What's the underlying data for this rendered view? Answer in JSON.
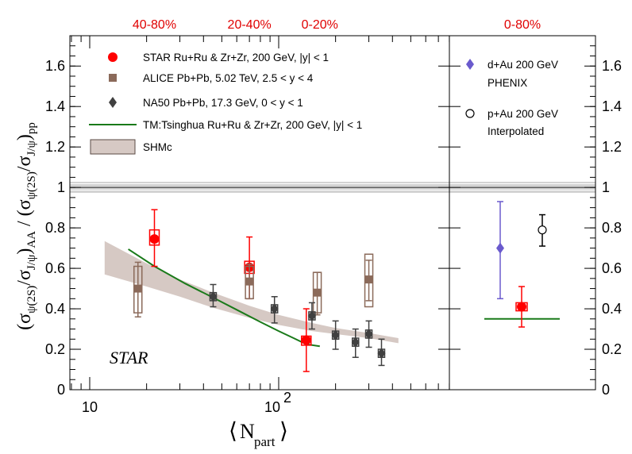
{
  "chart_data": {
    "type": "scatter",
    "x_scale": "log",
    "xlabel_main": "N",
    "xlabel_sub": "part",
    "ylabel": "(σψ(2S)/σJ/ψ)AA / (σψ(2S)/σJ/ψ)pp",
    "y_range": [
      0,
      1.75
    ],
    "x_range": [
      8,
      700
    ],
    "yticks": [
      "0",
      "0.2",
      "0.4",
      "0.6",
      "0.8",
      "1",
      "1.2",
      "1.4",
      "1.6"
    ],
    "ytick_values": [
      0,
      0.2,
      0.4,
      0.6,
      0.8,
      1.0,
      1.2,
      1.4,
      1.6
    ],
    "xticks": [
      "10",
      "10^2"
    ],
    "xtick_values": [
      10,
      100
    ],
    "centrality_labels": [
      {
        "text": "40-80%",
        "x": 22
      },
      {
        "text": "20-40%",
        "x": 70
      },
      {
        "text": "0-20%",
        "x": 165
      }
    ],
    "right_panel_centrality": "0-80%",
    "annotation": "STAR",
    "legend": {
      "star": "STAR Ru+Ru & Zr+Zr, 200 GeV, |y| < 1",
      "alice": "ALICE Pb+Pb, 5.02 TeV, 2.5 < y < 4",
      "na50": "NA50 Pb+Pb, 17.3 GeV, 0 < y < 1",
      "tm": "TM:Tsinghua Ru+Ru & Zr+Zr, 200 GeV, |y| < 1",
      "shmc": "SHMc",
      "dau_line1": "d+Au 200 GeV",
      "dau_line2": "PHENIX",
      "pau_line1": "p+Au 200 GeV",
      "pau_line2": "Interpolated"
    },
    "series": [
      {
        "id": "star",
        "name": "STAR Ru+Ru & Zr+Zr, 200 GeV, |y| < 1",
        "color": "#ff0000",
        "marker": "circle",
        "points": [
          {
            "x": 22,
            "y": 0.745,
            "stat_lo": 0.61,
            "stat_hi": 0.89,
            "sys_lo": 0.715,
            "sys_hi": 0.79
          },
          {
            "x": 70,
            "y": 0.605,
            "stat_lo": 0.45,
            "stat_hi": 0.755,
            "sys_lo": 0.575,
            "sys_hi": 0.635
          },
          {
            "x": 140,
            "y": 0.245,
            "stat_lo": 0.09,
            "stat_hi": 0.4,
            "sys_lo": 0.22,
            "sys_hi": 0.265
          }
        ]
      },
      {
        "id": "alice",
        "name": "ALICE Pb+Pb, 5.02 TeV, 2.5 < y < 4",
        "color": "#8b6a5a",
        "marker": "square",
        "points": [
          {
            "x": 18,
            "y": 0.5,
            "stat_lo": 0.36,
            "stat_hi": 0.63,
            "sys_lo": 0.38,
            "sys_hi": 0.61
          },
          {
            "x": 70,
            "y": 0.535,
            "stat_lo": 0.45,
            "stat_hi": 0.62,
            "sys_lo": 0.45,
            "sys_hi": 0.61
          },
          {
            "x": 160,
            "y": 0.48,
            "stat_lo": 0.37,
            "stat_hi": 0.58,
            "sys_lo": 0.38,
            "sys_hi": 0.58
          },
          {
            "x": 300,
            "y": 0.545,
            "stat_lo": 0.44,
            "stat_hi": 0.64,
            "sys_lo": 0.41,
            "sys_hi": 0.67
          }
        ]
      },
      {
        "id": "na50",
        "name": "NA50 Pb+Pb, 17.3 GeV, 0 < y < 1",
        "color": "#404040",
        "marker": "diamond",
        "points": [
          {
            "x": 45,
            "y": 0.46,
            "stat_lo": 0.41,
            "stat_hi": 0.52,
            "sys_lo": 0.44,
            "sys_hi": 0.48
          },
          {
            "x": 95,
            "y": 0.4,
            "stat_lo": 0.33,
            "stat_hi": 0.46,
            "sys_lo": 0.38,
            "sys_hi": 0.42
          },
          {
            "x": 150,
            "y": 0.365,
            "stat_lo": 0.3,
            "stat_hi": 0.43,
            "sys_lo": 0.345,
            "sys_hi": 0.385
          },
          {
            "x": 200,
            "y": 0.27,
            "stat_lo": 0.2,
            "stat_hi": 0.34,
            "sys_lo": 0.25,
            "sys_hi": 0.29
          },
          {
            "x": 255,
            "y": 0.235,
            "stat_lo": 0.16,
            "stat_hi": 0.3,
            "sys_lo": 0.215,
            "sys_hi": 0.255
          },
          {
            "x": 300,
            "y": 0.275,
            "stat_lo": 0.21,
            "stat_hi": 0.34,
            "sys_lo": 0.255,
            "sys_hi": 0.295
          },
          {
            "x": 350,
            "y": 0.18,
            "stat_lo": 0.12,
            "stat_hi": 0.25,
            "sys_lo": 0.16,
            "sys_hi": 0.2
          }
        ]
      }
    ],
    "tm_curve": {
      "name": "TM:Tsinghua Ru+Ru & Zr+Zr, 200 GeV, |y| < 1",
      "color": "#1a7a1a",
      "x": [
        16,
        22,
        32,
        45,
        60,
        80,
        100,
        120,
        140,
        165
      ],
      "y": [
        0.695,
        0.61,
        0.525,
        0.455,
        0.395,
        0.335,
        0.29,
        0.255,
        0.225,
        0.215
      ]
    },
    "shmc_band": {
      "name": "SHMc",
      "color": "#d6c9c4",
      "x": [
        12,
        20,
        30,
        45,
        70,
        100,
        150,
        200,
        300,
        430
      ],
      "y_lo": [
        0.57,
        0.51,
        0.46,
        0.405,
        0.355,
        0.32,
        0.29,
        0.275,
        0.255,
        0.23
      ],
      "y_hi": [
        0.735,
        0.625,
        0.545,
        0.48,
        0.415,
        0.37,
        0.33,
        0.305,
        0.28,
        0.255
      ]
    },
    "reference_line": {
      "y": 1.0,
      "band": [
        0.97,
        1.03
      ]
    },
    "right_panel": {
      "dau": {
        "name": "d+Au 200 GeV PHENIX",
        "color": "#6a5acd",
        "marker": "diamond",
        "y": 0.7,
        "err_lo": 0.45,
        "err_hi": 0.93
      },
      "pau": {
        "name": "p+Au 200 GeV Interpolated",
        "color": "#000000",
        "marker": "open-circle",
        "y": 0.79,
        "err_lo": 0.71,
        "err_hi": 0.865
      },
      "star": {
        "color": "#ff0000",
        "marker": "circle",
        "y": 0.41,
        "err_lo": 0.31,
        "err_hi": 0.51,
        "sys_lo": 0.39,
        "sys_hi": 0.43
      },
      "tm_line": {
        "color": "#1a7a1a",
        "y": 0.35
      }
    }
  }
}
